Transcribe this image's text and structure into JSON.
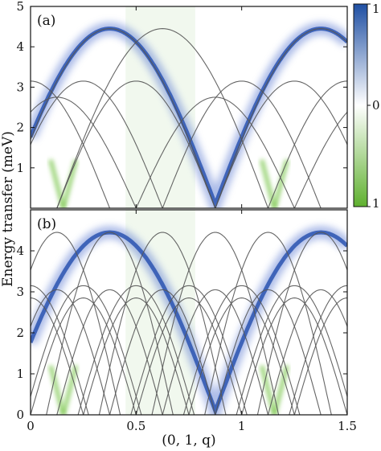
{
  "chart_data": {
    "type": "heatmap",
    "xlabel": "(0, 1, q)",
    "ylabel": "Energy transfer (meV)",
    "xlim": [
      0,
      1.5
    ],
    "ylim": [
      0,
      5
    ],
    "x_ticks": [
      "0",
      "0.5",
      "1",
      "1.5"
    ],
    "y_ticks": [
      "0",
      "1",
      "2",
      "3",
      "4",
      "5"
    ],
    "colorbar": {
      "range": [
        -1,
        1
      ],
      "ticks": [
        "1",
        "0",
        "1"
      ],
      "colors": {
        "negative": "#5fb02f",
        "zero": "#ffffff",
        "positive": "#1f4fa3"
      }
    },
    "intensity_feature": {
      "description_values": {
        "band_minimum_q": 0.875,
        "band_maximum_q": [
          0.375,
          1.375
        ],
        "band_energy_range": [
          0.1,
          4.45
        ]
      },
      "green_minimum_q": [
        0.155,
        1.155
      ]
    },
    "panels": [
      {
        "label": "(a)",
        "y_tick_labels": [
          "",
          "1",
          "2",
          "3",
          "4",
          "5"
        ],
        "dispersion_curves": [
          {
            "center": 0.375,
            "width": 1.0,
            "max": 4.45
          },
          {
            "center": 0.625,
            "width": 1.0,
            "max": 4.45
          },
          {
            "center": 1.375,
            "width": 1.0,
            "max": 4.45
          },
          {
            "center": 0.25,
            "width": 0.75,
            "max": 3.15
          },
          {
            "center": 0.5,
            "width": 0.75,
            "max": 3.15
          },
          {
            "center": 1.0,
            "width": 0.75,
            "max": 3.15
          },
          {
            "center": 1.25,
            "width": 0.75,
            "max": 3.15
          },
          {
            "center": 0.0,
            "width": 0.75,
            "max": 3.15
          },
          {
            "center": 1.5,
            "width": 0.75,
            "max": 3.15
          },
          {
            "center": 0.125,
            "width": 0.75,
            "max": 2.75
          },
          {
            "center": 0.875,
            "width": 0.75,
            "max": 2.75
          },
          {
            "center": 1.625,
            "width": 0.75,
            "max": 2.75
          }
        ]
      },
      {
        "label": "(b)",
        "y_tick_labels": [
          "0",
          "1",
          "2",
          "3",
          "4",
          ""
        ],
        "dispersion_curves": [
          {
            "center": 0.125,
            "width": 0.6,
            "max": 4.45
          },
          {
            "center": 0.375,
            "width": 0.6,
            "max": 4.45
          },
          {
            "center": 0.625,
            "width": 0.6,
            "max": 4.45
          },
          {
            "center": 0.875,
            "width": 0.6,
            "max": 4.45
          },
          {
            "center": 1.125,
            "width": 0.6,
            "max": 4.45
          },
          {
            "center": 1.375,
            "width": 0.6,
            "max": 4.45
          },
          {
            "center": 0.0,
            "width": 0.55,
            "max": 3.15
          },
          {
            "center": 0.25,
            "width": 0.55,
            "max": 3.15
          },
          {
            "center": 0.5,
            "width": 0.55,
            "max": 3.15
          },
          {
            "center": 0.75,
            "width": 0.55,
            "max": 3.15
          },
          {
            "center": 1.0,
            "width": 0.55,
            "max": 3.15
          },
          {
            "center": 1.25,
            "width": 0.55,
            "max": 3.15
          },
          {
            "center": 1.5,
            "width": 0.55,
            "max": 3.15
          },
          {
            "center": 0.125,
            "width": 0.5,
            "max": 3.05
          },
          {
            "center": 0.375,
            "width": 0.5,
            "max": 3.05
          },
          {
            "center": 0.625,
            "width": 0.5,
            "max": 3.05
          },
          {
            "center": 0.875,
            "width": 0.5,
            "max": 3.05
          },
          {
            "center": 1.125,
            "width": 0.5,
            "max": 3.05
          },
          {
            "center": 1.375,
            "width": 0.5,
            "max": 3.05
          },
          {
            "center": 0.0,
            "width": 0.5,
            "max": 2.85
          },
          {
            "center": 0.25,
            "width": 0.5,
            "max": 2.85
          },
          {
            "center": 0.5,
            "width": 0.5,
            "max": 2.85
          },
          {
            "center": 0.75,
            "width": 0.5,
            "max": 2.85
          },
          {
            "center": 1.0,
            "width": 0.5,
            "max": 2.85
          },
          {
            "center": 1.25,
            "width": 0.5,
            "max": 2.85
          },
          {
            "center": 1.5,
            "width": 0.5,
            "max": 2.85
          }
        ]
      }
    ]
  }
}
